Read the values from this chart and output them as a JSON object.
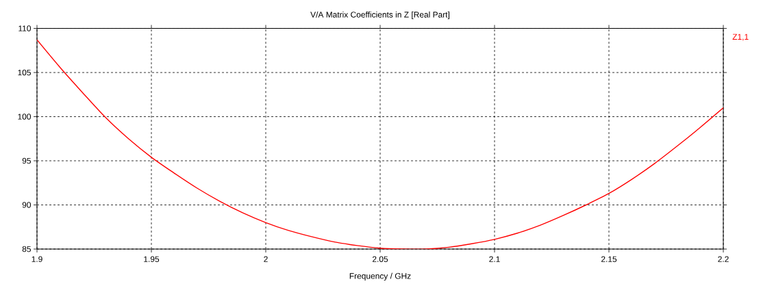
{
  "chart_data": {
    "type": "line",
    "title": "V/A Matrix Coefficients in Z [Real Part]",
    "xlabel": "Frequency / GHz",
    "x": [
      1.9,
      1.91,
      1.92,
      1.93,
      1.94,
      1.95,
      1.96,
      1.97,
      1.98,
      1.99,
      2.0,
      2.01,
      2.02,
      2.03,
      2.04,
      2.05,
      2.06,
      2.07,
      2.08,
      2.09,
      2.1,
      2.11,
      2.12,
      2.13,
      2.14,
      2.15,
      2.16,
      2.17,
      2.18,
      2.19,
      2.2
    ],
    "series": [
      {
        "name": "Z1,1",
        "color": "#ff0000",
        "values": [
          108.7,
          105.6,
          102.7,
          99.9,
          97.5,
          95.4,
          93.6,
          91.9,
          90.4,
          89.1,
          88.0,
          87.1,
          86.4,
          85.8,
          85.4,
          85.1,
          85.0,
          85.0,
          85.2,
          85.6,
          86.1,
          86.8,
          87.7,
          88.8,
          90.0,
          91.3,
          92.9,
          94.7,
          96.7,
          98.8,
          101.0
        ]
      }
    ],
    "xlim": [
      1.9,
      2.2
    ],
    "ylim": [
      85,
      110
    ],
    "xticks": [
      1.9,
      1.95,
      2,
      2.05,
      2.1,
      2.15,
      2.2
    ],
    "yticks": [
      85,
      90,
      95,
      100,
      105,
      110
    ],
    "grid": true,
    "line_style": "solid"
  }
}
